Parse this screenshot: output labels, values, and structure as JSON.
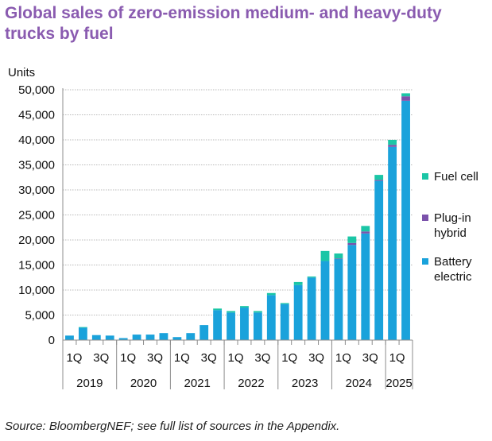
{
  "title_line1": "Global sales of zero-emission medium- and heavy-duty",
  "title_line2": "trucks by fuel",
  "source": "Source: BloombergNEF; see full list of sources in the Appendix.",
  "colors": {
    "title": "#8a5bb0",
    "battery_electric": "#1aa2db",
    "plug_in_hybrid": "#7b52ab",
    "fuel_cell": "#1bc6a6",
    "grid": "#b9b9b9",
    "axis": "#8c8c8c"
  },
  "chart_data": {
    "type": "bar",
    "stacked": true,
    "ylabel": "Units",
    "ylim": [
      0,
      50000
    ],
    "yticks": [
      0,
      5000,
      10000,
      15000,
      20000,
      25000,
      30000,
      35000,
      40000,
      45000,
      50000
    ],
    "ytick_labels": [
      "0",
      "5,000",
      "10,000",
      "15,000",
      "20,000",
      "25,000",
      "30,000",
      "35,000",
      "40,000",
      "45,000",
      "50,000"
    ],
    "grid": true,
    "legend_position": "right",
    "categories": [
      "2019 1Q",
      "2019 2Q",
      "2019 3Q",
      "2019 4Q",
      "2020 1Q",
      "2020 2Q",
      "2020 3Q",
      "2020 4Q",
      "2021 1Q",
      "2021 2Q",
      "2021 3Q",
      "2021 4Q",
      "2022 1Q",
      "2022 2Q",
      "2022 3Q",
      "2022 4Q",
      "2023 1Q",
      "2023 2Q",
      "2023 3Q",
      "2023 4Q",
      "2024 1Q",
      "2024 2Q",
      "2024 3Q",
      "2024 4Q",
      "2025 1Q",
      "2025 2Q"
    ],
    "quarter_labels": [
      "1Q",
      "3Q",
      "1Q",
      "3Q",
      "1Q",
      "3Q",
      "1Q",
      "3Q",
      "1Q",
      "3Q",
      "1Q",
      "3Q",
      "1Q"
    ],
    "year_labels": [
      "2019",
      "2020",
      "2021",
      "2022",
      "2023",
      "2024",
      "2025"
    ],
    "series": [
      {
        "name": "Battery electric",
        "values": [
          900,
          2500,
          1000,
          900,
          400,
          1100,
          1100,
          1400,
          600,
          1400,
          3000,
          6000,
          5500,
          6500,
          5500,
          9000,
          7200,
          11000,
          12500,
          15800,
          16200,
          19000,
          21300,
          31800,
          38600,
          47800
        ]
      },
      {
        "name": "Plug-in hybrid",
        "values": [
          0,
          0,
          0,
          0,
          0,
          0,
          0,
          0,
          0,
          0,
          0,
          0,
          0,
          0,
          0,
          0,
          0,
          0,
          0,
          0,
          100,
          400,
          400,
          200,
          400,
          900
        ]
      },
      {
        "name": "Fuel cell",
        "values": [
          0,
          100,
          0,
          0,
          0,
          0,
          0,
          0,
          0,
          0,
          0,
          300,
          300,
          300,
          300,
          400,
          200,
          600,
          200,
          2000,
          1000,
          1300,
          1100,
          1000,
          1000,
          600
        ]
      }
    ],
    "legend": [
      "Fuel cell",
      "Plug-in hybrid",
      "Battery electric"
    ]
  }
}
